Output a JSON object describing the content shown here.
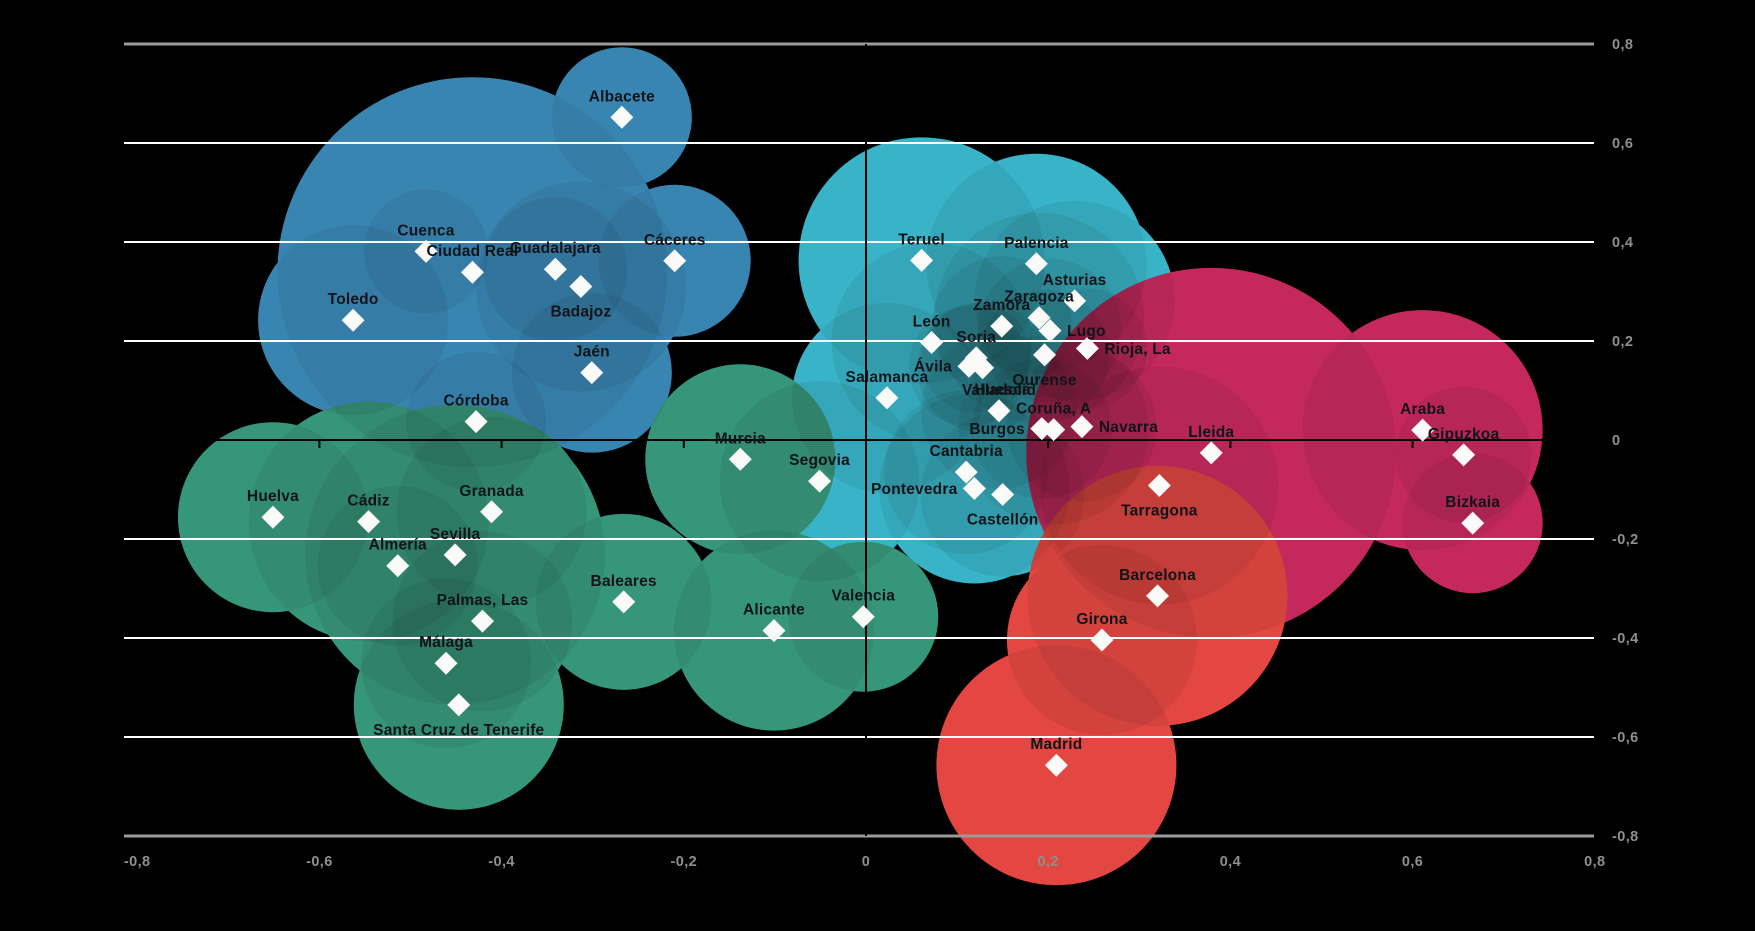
{
  "chart_data": {
    "type": "scatter",
    "title": "",
    "xlabel": "",
    "ylabel": "",
    "x_axis": {
      "min": -0.8,
      "max": 0.8,
      "tick_values": [
        -0.8,
        -0.6,
        -0.4,
        -0.2,
        0,
        0.2,
        0.4,
        0.6,
        0.8
      ],
      "tick_labels": [
        "-0,8",
        "-0,6",
        "-0,4",
        "-0,2",
        "0",
        "0,2",
        "0,4",
        "0,6",
        "0,8"
      ]
    },
    "y_axis": {
      "min": -0.8,
      "max": 0.8,
      "tick_values": [
        0.8,
        0.6,
        0.4,
        0.2,
        0,
        -0.2,
        -0.4,
        -0.6,
        -0.8
      ],
      "tick_labels": [
        "0,8",
        "0,6",
        "0,4",
        "0,2",
        "0",
        "-0,2",
        "-0,4",
        "-0,6",
        "-0,8"
      ]
    },
    "gridlines": {
      "white": [
        0.6,
        0.4,
        0.2,
        -0.2,
        -0.4,
        -0.6
      ],
      "grey": [
        0.8,
        -0.8
      ]
    },
    "legend": "none",
    "series": [
      {
        "name": "cluster-blue",
        "color": "#3d8ebf",
        "points": [
          {
            "label": "Ciudad Real",
            "x": -0.432,
            "y": 0.339,
            "r": 195,
            "label_pos": "above"
          },
          {
            "label": "Toledo",
            "x": -0.563,
            "y": 0.242,
            "r": 95,
            "label_pos": "above"
          },
          {
            "label": "Badajoz",
            "x": -0.313,
            "y": 0.31,
            "r": 105,
            "label_pos": "below"
          },
          {
            "label": "Jaén",
            "x": -0.301,
            "y": 0.136,
            "r": 80,
            "label_pos": "above"
          },
          {
            "label": "Córdoba",
            "x": -0.428,
            "y": 0.037,
            "r": 70,
            "label_pos": "above"
          },
          {
            "label": "Cáceres",
            "x": -0.21,
            "y": 0.362,
            "r": 76,
            "label_pos": "above"
          },
          {
            "label": "Guadalajara",
            "x": -0.341,
            "y": 0.345,
            "r": 72,
            "label_pos": "above"
          },
          {
            "label": "Albacete",
            "x": -0.268,
            "y": 0.652,
            "r": 70,
            "label_pos": "above"
          },
          {
            "label": "Cuenca",
            "x": -0.483,
            "y": 0.381,
            "r": 62,
            "label_pos": "above"
          }
        ]
      },
      {
        "name": "cluster-teal",
        "color": "#3cc0d6",
        "points": [
          {
            "label": "Teruel",
            "x": 0.061,
            "y": 0.363,
            "r": 123,
            "label_pos": "above"
          },
          {
            "label": "Palencia",
            "x": 0.187,
            "y": 0.356,
            "r": 110,
            "label_pos": "above"
          },
          {
            "label": "Zaragoza",
            "x": 0.19,
            "y": 0.247,
            "r": 105,
            "label_pos": "above"
          },
          {
            "label": "León",
            "x": 0.072,
            "y": 0.197,
            "r": 100,
            "label_pos": "above"
          },
          {
            "label": "Asturias",
            "x": 0.229,
            "y": 0.281,
            "r": 100,
            "label_pos": "above"
          },
          {
            "label": "Coruña, A",
            "x": 0.206,
            "y": 0.021,
            "r": 95,
            "label_pos": "above"
          },
          {
            "label": "Pontevedra",
            "x": 0.119,
            "y": -0.098,
            "r": 95,
            "label_pos": "left"
          },
          {
            "label": "Salamanca",
            "x": 0.023,
            "y": 0.085,
            "r": 95,
            "label_pos": "above"
          },
          {
            "label": "Segovia",
            "x": -0.051,
            "y": -0.083,
            "r": 100,
            "label_pos": "above"
          },
          {
            "label": "Cantabria",
            "x": 0.11,
            "y": -0.065,
            "r": 82,
            "label_pos": "above"
          },
          {
            "label": "Castellón",
            "x": 0.15,
            "y": -0.11,
            "r": 82,
            "label_pos": "below"
          },
          {
            "label": "Valladolid",
            "x": 0.146,
            "y": 0.059,
            "r": 78,
            "label_pos": "above"
          },
          {
            "label": "Navarra",
            "x": 0.237,
            "y": 0.027,
            "r": 75,
            "label_pos": "right"
          },
          {
            "label": "Lugo",
            "x": 0.202,
            "y": 0.221,
            "r": 72,
            "label_pos": "right"
          },
          {
            "label": "Burgos",
            "x": 0.193,
            "y": 0.023,
            "r": 70,
            "label_pos": "left"
          },
          {
            "label": "Zamora",
            "x": 0.149,
            "y": 0.23,
            "r": 70,
            "label_pos": "above"
          },
          {
            "label": "Ourense",
            "x": 0.196,
            "y": 0.172,
            "r": 65,
            "label_pos": "below"
          },
          {
            "label": "Huesca",
            "x": 0.128,
            "y": 0.146,
            "r": 65,
            "label_pos": "below-right"
          },
          {
            "label": "Rioja, La",
            "x": 0.243,
            "y": 0.185,
            "r": 60,
            "label_pos": "right"
          },
          {
            "label": "Ávila",
            "x": 0.113,
            "y": 0.149,
            "r": 60,
            "label_pos": "left"
          },
          {
            "label": "Soria",
            "x": 0.121,
            "y": 0.166,
            "r": 55,
            "label_pos": "above"
          }
        ]
      },
      {
        "name": "cluster-green",
        "color": "#3aa183",
        "points": [
          {
            "label": "Sevilla",
            "x": -0.451,
            "y": -0.232,
            "r": 150,
            "label_pos": "above"
          },
          {
            "label": "Cádiz",
            "x": -0.546,
            "y": -0.165,
            "r": 120,
            "label_pos": "above"
          },
          {
            "label": "Santa Cruz de Tenerife",
            "x": -0.447,
            "y": -0.535,
            "r": 105,
            "label_pos": "below"
          },
          {
            "label": "Alicante",
            "x": -0.101,
            "y": -0.385,
            "r": 100,
            "label_pos": "above"
          },
          {
            "label": "Murcia",
            "x": -0.138,
            "y": -0.039,
            "r": 95,
            "label_pos": "above"
          },
          {
            "label": "Huelva",
            "x": -0.651,
            "y": -0.156,
            "r": 95,
            "label_pos": "above"
          },
          {
            "label": "Granada",
            "x": -0.411,
            "y": -0.145,
            "r": 95,
            "label_pos": "above"
          },
          {
            "label": "Palmas, Las",
            "x": -0.421,
            "y": -0.366,
            "r": 90,
            "label_pos": "above"
          },
          {
            "label": "Baleares",
            "x": -0.266,
            "y": -0.327,
            "r": 88,
            "label_pos": "above"
          },
          {
            "label": "Málaga",
            "x": -0.461,
            "y": -0.451,
            "r": 85,
            "label_pos": "above"
          },
          {
            "label": "Almería",
            "x": -0.514,
            "y": -0.254,
            "r": 80,
            "label_pos": "above"
          },
          {
            "label": "Valencia",
            "x": -0.003,
            "y": -0.357,
            "r": 75,
            "label_pos": "above"
          }
        ]
      },
      {
        "name": "cluster-magenta",
        "color": "#d22a64",
        "points": [
          {
            "label": "Lleida",
            "x": 0.379,
            "y": -0.026,
            "r": 185,
            "label_pos": "above"
          },
          {
            "label": "Araba",
            "x": 0.611,
            "y": 0.02,
            "r": 120,
            "label_pos": "above"
          },
          {
            "label": "Tarragona",
            "x": 0.322,
            "y": -0.092,
            "r": 119,
            "label_pos": "below"
          },
          {
            "label": "Bizkaia",
            "x": 0.666,
            "y": -0.168,
            "r": 70,
            "label_pos": "above"
          },
          {
            "label": "Gipuzkoa",
            "x": 0.656,
            "y": -0.03,
            "r": 68,
            "label_pos": "above"
          }
        ]
      },
      {
        "name": "cluster-red",
        "color": "#f54b45",
        "points": [
          {
            "label": "Barcelona",
            "x": 0.32,
            "y": -0.315,
            "r": 130,
            "label_pos": "above"
          },
          {
            "label": "Madrid",
            "x": 0.209,
            "y": -0.657,
            "r": 120,
            "label_pos": "above"
          },
          {
            "label": "Girona",
            "x": 0.259,
            "y": -0.404,
            "r": 95,
            "label_pos": "above"
          }
        ]
      }
    ]
  },
  "colors": {
    "background": "#000000",
    "grid_white": "#ffffff",
    "grid_grey": "#9b9b9b",
    "zero_axis": "#000000",
    "axis_text": "#8f8f8f",
    "point_label_text": "#101418",
    "marker": "#fafaf8",
    "overlap_shade": "#eeeeee"
  }
}
